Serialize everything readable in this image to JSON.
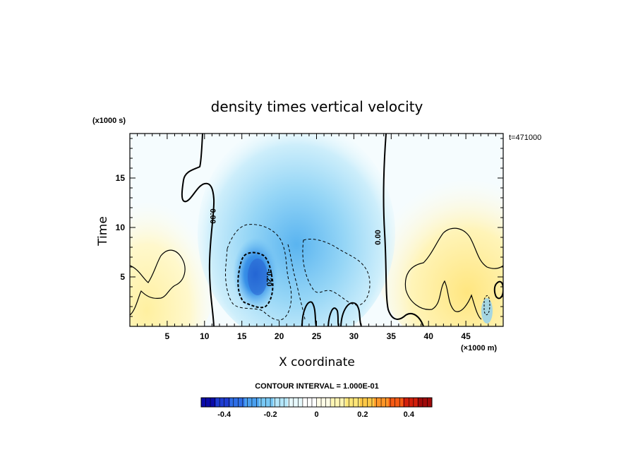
{
  "chart_data": {
    "type": "heatmap",
    "title": "density times vertical velocity",
    "xlabel": "X coordinate",
    "ylabel": "Time",
    "x_units": "(×1000 m)",
    "y_units": "(x1000 s)",
    "time_stamp": "t=471000",
    "xlim": [
      0,
      50
    ],
    "ylim": [
      0,
      19.5
    ],
    "xticks": [
      5,
      10,
      15,
      20,
      25,
      30,
      35,
      40,
      45
    ],
    "yticks": [
      5,
      10,
      15
    ],
    "contour_labels": [
      {
        "text": "0.00",
        "x": 11,
        "y": 11.5
      },
      {
        "text": "0.00",
        "x": 34,
        "y": 9
      },
      {
        "text": "-0.20",
        "x": 18.3,
        "y": 5.5
      }
    ],
    "features": [
      {
        "name": "negative core",
        "x_range": [
          13,
          22
        ],
        "y_range": [
          2,
          8
        ],
        "peak": -0.3
      },
      {
        "name": "negative region",
        "x_range": [
          10.5,
          33.5
        ],
        "y_range": [
          0,
          19.5
        ],
        "peak": -0.15
      },
      {
        "name": "positive region left",
        "x_range": [
          0,
          10
        ],
        "y_range": [
          0,
          15.5
        ],
        "peak": 0.1
      },
      {
        "name": "positive region right",
        "x_range": [
          35,
          50
        ],
        "y_range": [
          0,
          16
        ],
        "peak": 0.15
      }
    ],
    "colorbar": {
      "label": "CONTOUR INTERVAL = 1.000E-01",
      "range": [
        -0.5,
        0.5
      ],
      "ticks": [
        -0.4,
        -0.2,
        0,
        0.2,
        0.4
      ],
      "tick_labels": [
        "-0.4",
        "-0.2",
        "0",
        "0.2",
        "0.4"
      ],
      "colors": [
        "#0a0aa8",
        "#1e3cd2",
        "#2e6ee6",
        "#4aa0f0",
        "#78c8f5",
        "#b4e6fa",
        "#e6f8fc",
        "#ffffff",
        "#fffce6",
        "#fff5b4",
        "#ffe678",
        "#ffc846",
        "#ff9628",
        "#f55a14",
        "#d21e0a",
        "#a00a0a"
      ]
    }
  }
}
